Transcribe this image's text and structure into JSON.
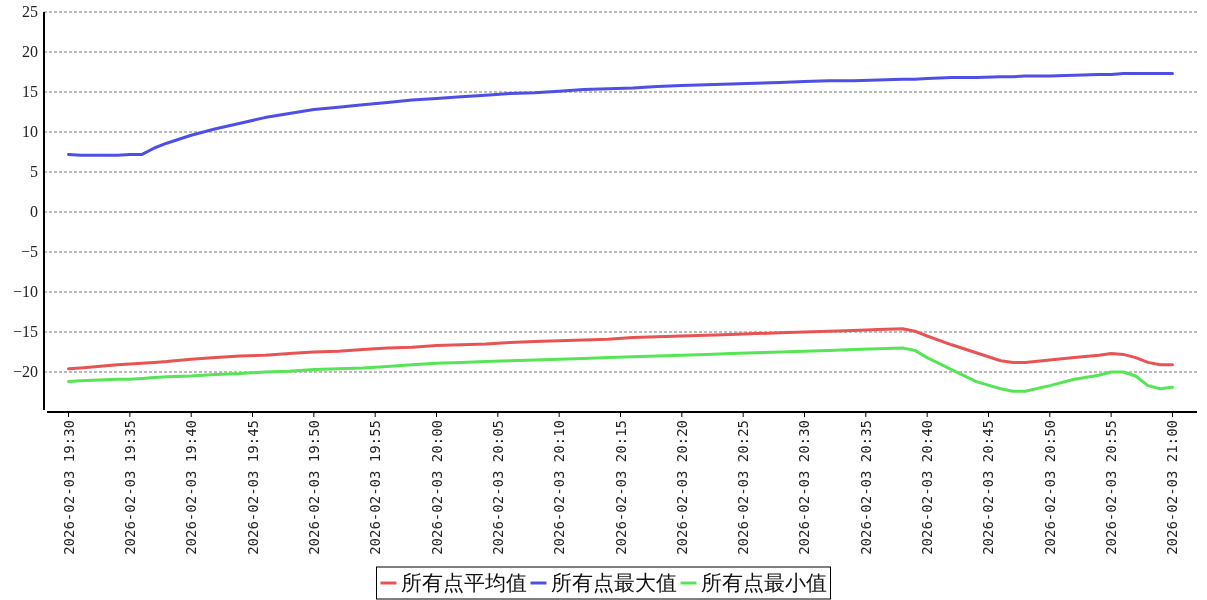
{
  "chart_data": {
    "type": "line",
    "grid": "y",
    "legend": "bottom",
    "marker": "none",
    "line_style": "solid",
    "xlim": [
      "2026-02-03T19:28",
      "2026-02-03T21:02"
    ],
    "xticks": [
      {
        "value": "2026-02-03T19:30",
        "label": "2026-02-03 19:30"
      },
      {
        "value": "2026-02-03T19:35",
        "label": "2026-02-03 19:35"
      },
      {
        "value": "2026-02-03T19:40",
        "label": "2026-02-03 19:40"
      },
      {
        "value": "2026-02-03T19:45",
        "label": "2026-02-03 19:45"
      },
      {
        "value": "2026-02-03T19:50",
        "label": "2026-02-03 19:50"
      },
      {
        "value": "2026-02-03T19:55",
        "label": "2026-02-03 19:55"
      },
      {
        "value": "2026-02-03T20:00",
        "label": "2026-02-03 20:00"
      },
      {
        "value": "2026-02-03T20:05",
        "label": "2026-02-03 20:05"
      },
      {
        "value": "2026-02-03T20:10",
        "label": "2026-02-03 20:10"
      },
      {
        "value": "2026-02-03T20:15",
        "label": "2026-02-03 20:15"
      },
      {
        "value": "2026-02-03T20:20",
        "label": "2026-02-03 20:20"
      },
      {
        "value": "2026-02-03T20:25",
        "label": "2026-02-03 20:25"
      },
      {
        "value": "2026-02-03T20:30",
        "label": "2026-02-03 20:30"
      },
      {
        "value": "2026-02-03T20:35",
        "label": "2026-02-03 20:35"
      },
      {
        "value": "2026-02-03T20:40",
        "label": "2026-02-03 20:40"
      },
      {
        "value": "2026-02-03T20:45",
        "label": "2026-02-03 20:45"
      },
      {
        "value": "2026-02-03T20:50",
        "label": "2026-02-03 20:50"
      },
      {
        "value": "2026-02-03T20:55",
        "label": "2026-02-03 20:55"
      },
      {
        "value": "2026-02-03T21:00",
        "label": "2026-02-03 21:00"
      }
    ],
    "ylim": [
      -25,
      25
    ],
    "yticks": [
      -20,
      -15,
      -10,
      -5,
      0,
      5,
      10,
      15,
      20,
      25
    ],
    "x": [
      "2026-02-03T19:30",
      "2026-02-03T19:31",
      "2026-02-03T19:34",
      "2026-02-03T19:35",
      "2026-02-03T19:36",
      "2026-02-03T19:37",
      "2026-02-03T19:38",
      "2026-02-03T19:40",
      "2026-02-03T19:42",
      "2026-02-03T19:44",
      "2026-02-03T19:46",
      "2026-02-03T19:48",
      "2026-02-03T19:50",
      "2026-02-03T19:52",
      "2026-02-03T19:54",
      "2026-02-03T19:56",
      "2026-02-03T19:58",
      "2026-02-03T20:00",
      "2026-02-03T20:02",
      "2026-02-03T20:04",
      "2026-02-03T20:06",
      "2026-02-03T20:08",
      "2026-02-03T20:10",
      "2026-02-03T20:12",
      "2026-02-03T20:14",
      "2026-02-03T20:16",
      "2026-02-03T20:18",
      "2026-02-03T20:20",
      "2026-02-03T20:22",
      "2026-02-03T20:24",
      "2026-02-03T20:26",
      "2026-02-03T20:28",
      "2026-02-03T20:30",
      "2026-02-03T20:32",
      "2026-02-03T20:34",
      "2026-02-03T20:36",
      "2026-02-03T20:38",
      "2026-02-03T20:39",
      "2026-02-03T20:40",
      "2026-02-03T20:42",
      "2026-02-03T20:44",
      "2026-02-03T20:46",
      "2026-02-03T20:47",
      "2026-02-03T20:48",
      "2026-02-03T20:50",
      "2026-02-03T20:52",
      "2026-02-03T20:54",
      "2026-02-03T20:55",
      "2026-02-03T20:56",
      "2026-02-03T20:57",
      "2026-02-03T20:58",
      "2026-02-03T20:59",
      "2026-02-03T21:00"
    ],
    "series": [
      {
        "name": "所有点平均值",
        "color": "#e85454",
        "values": [
          -19.6,
          -19.5,
          -19.1,
          -19.0,
          -18.9,
          -18.8,
          -18.7,
          -18.4,
          -18.2,
          -18.0,
          -17.9,
          -17.7,
          -17.5,
          -17.4,
          -17.2,
          -17.0,
          -16.9,
          -16.7,
          -16.6,
          -16.5,
          -16.3,
          -16.2,
          -16.1,
          -16.0,
          -15.9,
          -15.7,
          -15.6,
          -15.5,
          -15.4,
          -15.3,
          -15.2,
          -15.1,
          -15.0,
          -14.9,
          -14.8,
          -14.7,
          -14.6,
          -14.9,
          -15.5,
          -16.6,
          -17.6,
          -18.6,
          -18.8,
          -18.8,
          -18.5,
          -18.2,
          -17.9,
          -17.7,
          -17.8,
          -18.2,
          -18.8,
          -19.1,
          -19.1
        ]
      },
      {
        "name": "所有点最大值",
        "color": "#4f4fe6",
        "values": [
          7.2,
          7.1,
          7.1,
          7.2,
          7.2,
          8.0,
          8.6,
          9.6,
          10.4,
          11.1,
          11.8,
          12.3,
          12.8,
          13.1,
          13.4,
          13.7,
          14.0,
          14.2,
          14.4,
          14.6,
          14.8,
          14.9,
          15.1,
          15.3,
          15.4,
          15.5,
          15.7,
          15.8,
          15.9,
          16.0,
          16.1,
          16.2,
          16.3,
          16.4,
          16.4,
          16.5,
          16.6,
          16.6,
          16.7,
          16.8,
          16.8,
          16.9,
          16.9,
          17.0,
          17.0,
          17.1,
          17.2,
          17.2,
          17.3,
          17.3,
          17.3,
          17.3,
          17.3
        ]
      },
      {
        "name": "所有点最小值",
        "color": "#56e556",
        "values": [
          -21.2,
          -21.1,
          -20.9,
          -20.9,
          -20.8,
          -20.7,
          -20.6,
          -20.5,
          -20.3,
          -20.2,
          -20.0,
          -19.9,
          -19.7,
          -19.6,
          -19.5,
          -19.3,
          -19.1,
          -18.9,
          -18.8,
          -18.7,
          -18.6,
          -18.5,
          -18.4,
          -18.3,
          -18.2,
          -18.1,
          -18.0,
          -17.9,
          -17.8,
          -17.7,
          -17.6,
          -17.5,
          -17.4,
          -17.3,
          -17.2,
          -17.1,
          -17.0,
          -17.3,
          -18.2,
          -19.7,
          -21.2,
          -22.1,
          -22.4,
          -22.4,
          -21.7,
          -20.9,
          -20.4,
          -20.0,
          -20.0,
          -20.5,
          -21.7,
          -22.1,
          -21.9
        ]
      }
    ]
  }
}
